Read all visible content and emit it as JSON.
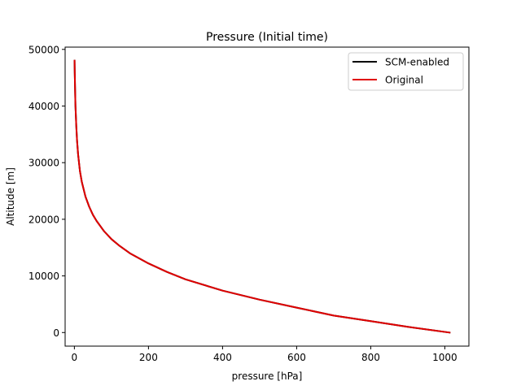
{
  "chart_data": {
    "type": "line",
    "title": "Pressure (Initial time)",
    "xlabel": "pressure [hPa]",
    "ylabel": "Altitude [m]",
    "xlim": [
      -25,
      1065
    ],
    "ylim": [
      -2400,
      50400
    ],
    "xticks": [
      0,
      200,
      400,
      600,
      800,
      1000
    ],
    "yticks": [
      0,
      10000,
      20000,
      30000,
      40000,
      50000
    ],
    "xtick_labels": [
      "0",
      "200",
      "400",
      "600",
      "800",
      "1000"
    ],
    "ytick_labels": [
      "0",
      "10000",
      "20000",
      "30000",
      "40000",
      "50000"
    ],
    "grid": false,
    "legend_position": "top-right",
    "series": [
      {
        "name": "SCM-enabled",
        "color": "#000000",
        "x": [
          1013,
          900,
          800,
          700,
          600,
          500,
          400,
          300,
          250,
          200,
          150,
          120,
          100,
          80,
          60,
          50,
          40,
          30,
          20,
          15,
          10,
          7,
          5,
          3,
          2,
          1,
          0.5
        ],
        "y": [
          0,
          1000,
          2000,
          3000,
          4400,
          5800,
          7400,
          9400,
          10700,
          12200,
          14000,
          15400,
          16500,
          17900,
          19700,
          20800,
          22200,
          24000,
          26600,
          28500,
          31500,
          34000,
          36500,
          40000,
          42500,
          46000,
          48000
        ]
      },
      {
        "name": "Original",
        "color": "#e00000",
        "x": [
          1013,
          900,
          800,
          700,
          600,
          500,
          400,
          300,
          250,
          200,
          150,
          120,
          100,
          80,
          60,
          50,
          40,
          30,
          20,
          15,
          10,
          7,
          5,
          3,
          2,
          1,
          0.5
        ],
        "y": [
          0,
          1000,
          2000,
          3000,
          4400,
          5800,
          7400,
          9400,
          10700,
          12200,
          14000,
          15400,
          16500,
          17900,
          19700,
          20800,
          22200,
          24000,
          26600,
          28500,
          31500,
          34000,
          36500,
          40000,
          42500,
          46000,
          48000
        ]
      }
    ]
  }
}
